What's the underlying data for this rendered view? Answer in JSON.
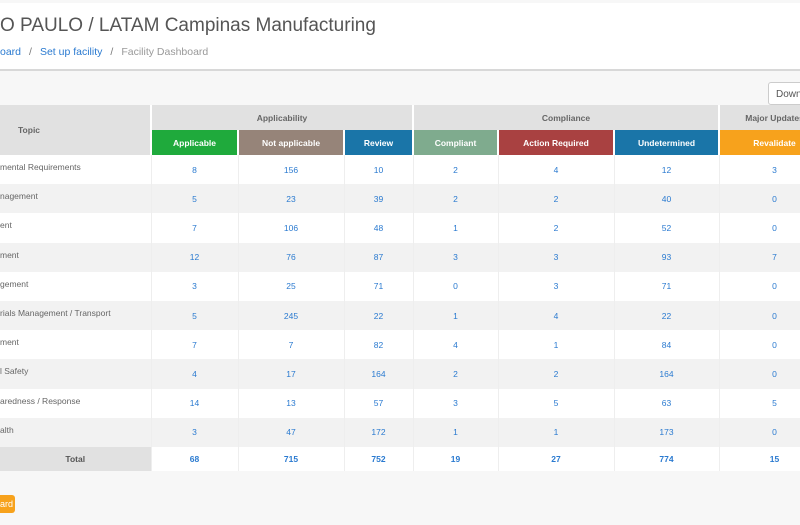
{
  "header": {
    "title": "O PAULO / LATAM Campinas Manufacturing",
    "breadcrumbs": [
      "oard",
      "Set up facility",
      "Facility Dashboard"
    ]
  },
  "download_label": "Downlo",
  "table": {
    "topic_header": "Topic",
    "groups": [
      "Applicability",
      "Compliance",
      "Major Updates"
    ],
    "columns": [
      {
        "label": "Applicable",
        "color": "#1faa3c"
      },
      {
        "label": "Not applicable",
        "color": "#968479"
      },
      {
        "label": "Review",
        "color": "#1a75a8"
      },
      {
        "label": "Compliant",
        "color": "#7fab8e"
      },
      {
        "label": "Action Required",
        "color": "#a94141"
      },
      {
        "label": "Undetermined",
        "color": "#1a75a8"
      },
      {
        "label": "Revalidate",
        "color": "#f7a21c"
      }
    ],
    "rows": [
      {
        "topic": "mental Requirements",
        "v": [
          "8",
          "156",
          "10",
          "2",
          "4",
          "12",
          "3"
        ]
      },
      {
        "topic": "nagement",
        "v": [
          "5",
          "23",
          "39",
          "2",
          "2",
          "40",
          "0"
        ]
      },
      {
        "topic": "ent",
        "v": [
          "7",
          "106",
          "48",
          "1",
          "2",
          "52",
          "0"
        ]
      },
      {
        "topic": "ment",
        "v": [
          "12",
          "76",
          "87",
          "3",
          "3",
          "93",
          "7"
        ]
      },
      {
        "topic": "gement",
        "v": [
          "3",
          "25",
          "71",
          "0",
          "3",
          "71",
          "0"
        ]
      },
      {
        "topic": "rials Management / Transport",
        "v": [
          "5",
          "245",
          "22",
          "1",
          "4",
          "22",
          "0"
        ]
      },
      {
        "topic": "ment",
        "v": [
          "7",
          "7",
          "82",
          "4",
          "1",
          "84",
          "0"
        ]
      },
      {
        "topic": "l Safety",
        "v": [
          "4",
          "17",
          "164",
          "2",
          "2",
          "164",
          "0"
        ]
      },
      {
        "topic": "aredness / Response",
        "v": [
          "14",
          "13",
          "57",
          "3",
          "5",
          "63",
          "5"
        ]
      },
      {
        "topic": "alth",
        "v": [
          "3",
          "47",
          "172",
          "1",
          "1",
          "173",
          "0"
        ]
      }
    ],
    "total": {
      "label": "Total",
      "v": [
        "68",
        "715",
        "752",
        "19",
        "27",
        "774",
        "15"
      ]
    }
  },
  "bottom_button": "ard"
}
